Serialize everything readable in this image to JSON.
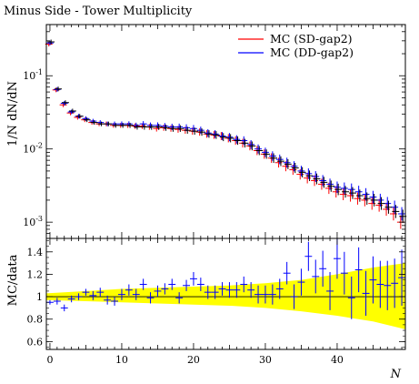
{
  "chart_data": [
    {
      "type": "scatter",
      "title": "Minus Side - Tower Multiplicity",
      "ylabel": "1/N dN/dN",
      "xlabel": "",
      "yscale": "log",
      "xlim": [
        -0.5,
        49.5
      ],
      "ylim": [
        0.0006,
        0.5
      ],
      "y_ticks": [
        0.001,
        0.01,
        0.1
      ],
      "y_tick_labels": [
        "10^-3",
        "10^-2",
        "10^-1"
      ],
      "legend_position": "top-right",
      "series": [
        {
          "name": "MC (SD-gap2)",
          "color": "#ff0000",
          "x": [
            0,
            1,
            2,
            3,
            4,
            5,
            6,
            7,
            8,
            9,
            10,
            11,
            12,
            13,
            14,
            15,
            16,
            17,
            18,
            19,
            20,
            21,
            22,
            23,
            24,
            25,
            26,
            27,
            28,
            29,
            30,
            31,
            32,
            33,
            34,
            35,
            36,
            37,
            38,
            39,
            40,
            41,
            42,
            43,
            44,
            45,
            46,
            47,
            48,
            49
          ],
          "y": [
            0.27,
            0.064,
            0.04,
            0.031,
            0.027,
            0.025,
            0.023,
            0.022,
            0.022,
            0.021,
            0.021,
            0.021,
            0.0205,
            0.0205,
            0.02,
            0.019,
            0.0195,
            0.019,
            0.0185,
            0.018,
            0.0175,
            0.017,
            0.016,
            0.0155,
            0.015,
            0.014,
            0.013,
            0.012,
            0.011,
            0.0095,
            0.0085,
            0.0075,
            0.0065,
            0.0058,
            0.0052,
            0.0045,
            0.004,
            0.0037,
            0.0033,
            0.0029,
            0.0026,
            0.0024,
            0.0023,
            0.0021,
            0.002,
            0.0018,
            0.0017,
            0.0015,
            0.0013,
            0.001
          ]
        },
        {
          "name": "MC (DD-gap2)",
          "color": "#0000ff",
          "x": [
            0,
            1,
            2,
            3,
            4,
            5,
            6,
            7,
            8,
            9,
            10,
            11,
            12,
            13,
            14,
            15,
            16,
            17,
            18,
            19,
            20,
            21,
            22,
            23,
            24,
            25,
            26,
            27,
            28,
            29,
            30,
            31,
            32,
            33,
            34,
            35,
            36,
            37,
            38,
            39,
            40,
            41,
            42,
            43,
            44,
            45,
            46,
            47,
            48,
            49
          ],
          "y": [
            0.28,
            0.065,
            0.042,
            0.032,
            0.028,
            0.026,
            0.024,
            0.023,
            0.022,
            0.022,
            0.022,
            0.022,
            0.021,
            0.022,
            0.021,
            0.021,
            0.0205,
            0.02,
            0.02,
            0.0195,
            0.019,
            0.018,
            0.0165,
            0.016,
            0.015,
            0.0145,
            0.0135,
            0.013,
            0.0115,
            0.01,
            0.009,
            0.008,
            0.0072,
            0.0065,
            0.0058,
            0.005,
            0.0046,
            0.0042,
            0.0037,
            0.0033,
            0.003,
            0.0029,
            0.0028,
            0.0026,
            0.0024,
            0.0022,
            0.002,
            0.0018,
            0.0016,
            0.0013
          ]
        },
        {
          "name": "",
          "color": "#000000",
          "x": [
            0,
            1,
            2,
            3,
            4,
            5,
            6,
            7,
            8,
            9,
            10,
            11,
            12,
            13,
            14,
            15,
            16,
            17,
            18,
            19,
            20,
            21,
            22,
            23,
            24,
            25,
            26,
            27,
            28,
            29,
            30,
            31,
            32,
            33,
            34,
            35,
            36,
            37,
            38,
            39,
            40,
            41,
            42,
            43,
            44,
            45,
            46,
            47,
            48,
            49
          ],
          "y": [
            0.29,
            0.066,
            0.043,
            0.033,
            0.028,
            0.025,
            0.023,
            0.022,
            0.022,
            0.021,
            0.021,
            0.021,
            0.02,
            0.02,
            0.02,
            0.02,
            0.0195,
            0.019,
            0.019,
            0.018,
            0.0175,
            0.017,
            0.016,
            0.0155,
            0.0145,
            0.014,
            0.013,
            0.012,
            0.011,
            0.0095,
            0.0085,
            0.0075,
            0.0068,
            0.0062,
            0.0055,
            0.0048,
            0.0043,
            0.0039,
            0.0035,
            0.0031,
            0.0028,
            0.0026,
            0.0025,
            0.0023,
            0.0021,
            0.002,
            0.0018,
            0.0016,
            0.0014,
            0.0012
          ]
        }
      ]
    },
    {
      "type": "scatter",
      "xlabel": "N",
      "ylabel": "MC/data",
      "xlim": [
        -0.5,
        49.5
      ],
      "ylim": [
        0.53,
        1.52
      ],
      "x_ticks": [
        0,
        10,
        20,
        30,
        40
      ],
      "y_ticks": [
        0.6,
        0.8,
        1.0,
        1.2,
        1.4
      ],
      "y_tick_labels": [
        "0.6",
        "0.8",
        "1",
        "1.2",
        "1.4"
      ],
      "band_color": "#ffff00",
      "reference_line": 1.0,
      "band": {
        "x": [
          -0.5,
          5,
          10,
          15,
          20,
          25,
          30,
          35,
          40,
          45,
          49.5
        ],
        "lower": [
          0.97,
          0.96,
          0.95,
          0.94,
          0.93,
          0.92,
          0.9,
          0.87,
          0.83,
          0.78,
          0.71
        ],
        "upper": [
          1.03,
          1.05,
          1.07,
          1.08,
          1.09,
          1.1,
          1.12,
          1.15,
          1.2,
          1.26,
          1.3
        ]
      },
      "series": [
        {
          "name": "MC (DD-gap2) / data",
          "color": "#0000ff",
          "x": [
            0,
            1,
            2,
            3,
            4,
            5,
            6,
            7,
            8,
            9,
            10,
            11,
            12,
            13,
            14,
            15,
            16,
            17,
            18,
            19,
            20,
            21,
            22,
            23,
            24,
            25,
            26,
            27,
            28,
            29,
            30,
            31,
            32,
            33,
            34,
            35,
            36,
            37,
            38,
            39,
            40,
            41,
            42,
            43,
            44,
            45,
            46,
            47,
            48,
            49
          ],
          "y": [
            0.95,
            0.96,
            0.9,
            0.98,
            1.0,
            1.04,
            1.01,
            1.04,
            0.97,
            0.96,
            1.02,
            1.06,
            1.02,
            1.11,
            0.99,
            1.05,
            1.07,
            1.11,
            0.99,
            1.1,
            1.16,
            1.11,
            1.04,
            1.04,
            1.07,
            1.06,
            1.06,
            1.11,
            1.06,
            1.02,
            1.02,
            1.02,
            1.07,
            1.21,
            1.0,
            1.13,
            1.36,
            1.18,
            1.25,
            1.05,
            1.34,
            1.21,
            0.99,
            1.24,
            1.03,
            1.15,
            1.11,
            1.1,
            1.12,
            1.17
          ],
          "err": [
            0.02,
            0.03,
            0.03,
            0.03,
            0.03,
            0.03,
            0.04,
            0.04,
            0.04,
            0.04,
            0.05,
            0.05,
            0.05,
            0.05,
            0.05,
            0.05,
            0.05,
            0.05,
            0.05,
            0.05,
            0.06,
            0.06,
            0.06,
            0.06,
            0.06,
            0.07,
            0.07,
            0.07,
            0.07,
            0.08,
            0.08,
            0.09,
            0.09,
            0.1,
            0.11,
            0.12,
            0.13,
            0.15,
            0.16,
            0.17,
            0.18,
            0.19,
            0.19,
            0.2,
            0.2,
            0.21,
            0.21,
            0.22,
            0.22,
            0.25
          ]
        }
      ]
    }
  ]
}
